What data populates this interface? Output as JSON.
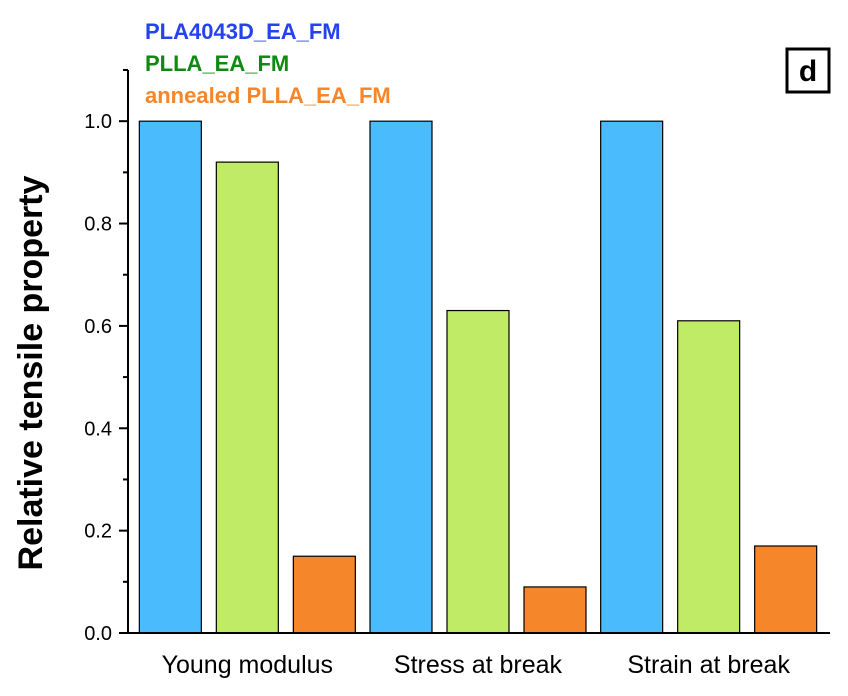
{
  "chart_data": {
    "type": "bar",
    "title": "",
    "xlabel": "",
    "ylabel": "Relative tensile property",
    "ylim": [
      0.0,
      1.1
    ],
    "yticks": [
      0.0,
      0.2,
      0.4,
      0.6,
      0.8,
      1.0
    ],
    "ytick_labels": [
      "0.0",
      "0.2",
      "0.4",
      "0.6",
      "0.8",
      "1.0"
    ],
    "categories": [
      "Young modulus",
      "Stress at break",
      "Strain at break"
    ],
    "series": [
      {
        "name": "PLA4043D_EA_FM",
        "color": "#4ABBFD",
        "legend_color": "#2443EE",
        "values": [
          1.0,
          1.0,
          1.0
        ]
      },
      {
        "name": "PLLA_EA_FM",
        "color": "#BFEB67",
        "legend_color": "#0E8A12",
        "values": [
          0.92,
          0.63,
          0.61
        ]
      },
      {
        "name": "annealed PLLA_EA_FM",
        "color": "#F5862A",
        "legend_color": "#F5862A",
        "values": [
          0.15,
          0.09,
          0.17
        ]
      }
    ],
    "legend_position": "top-left",
    "panel_label": "d"
  }
}
